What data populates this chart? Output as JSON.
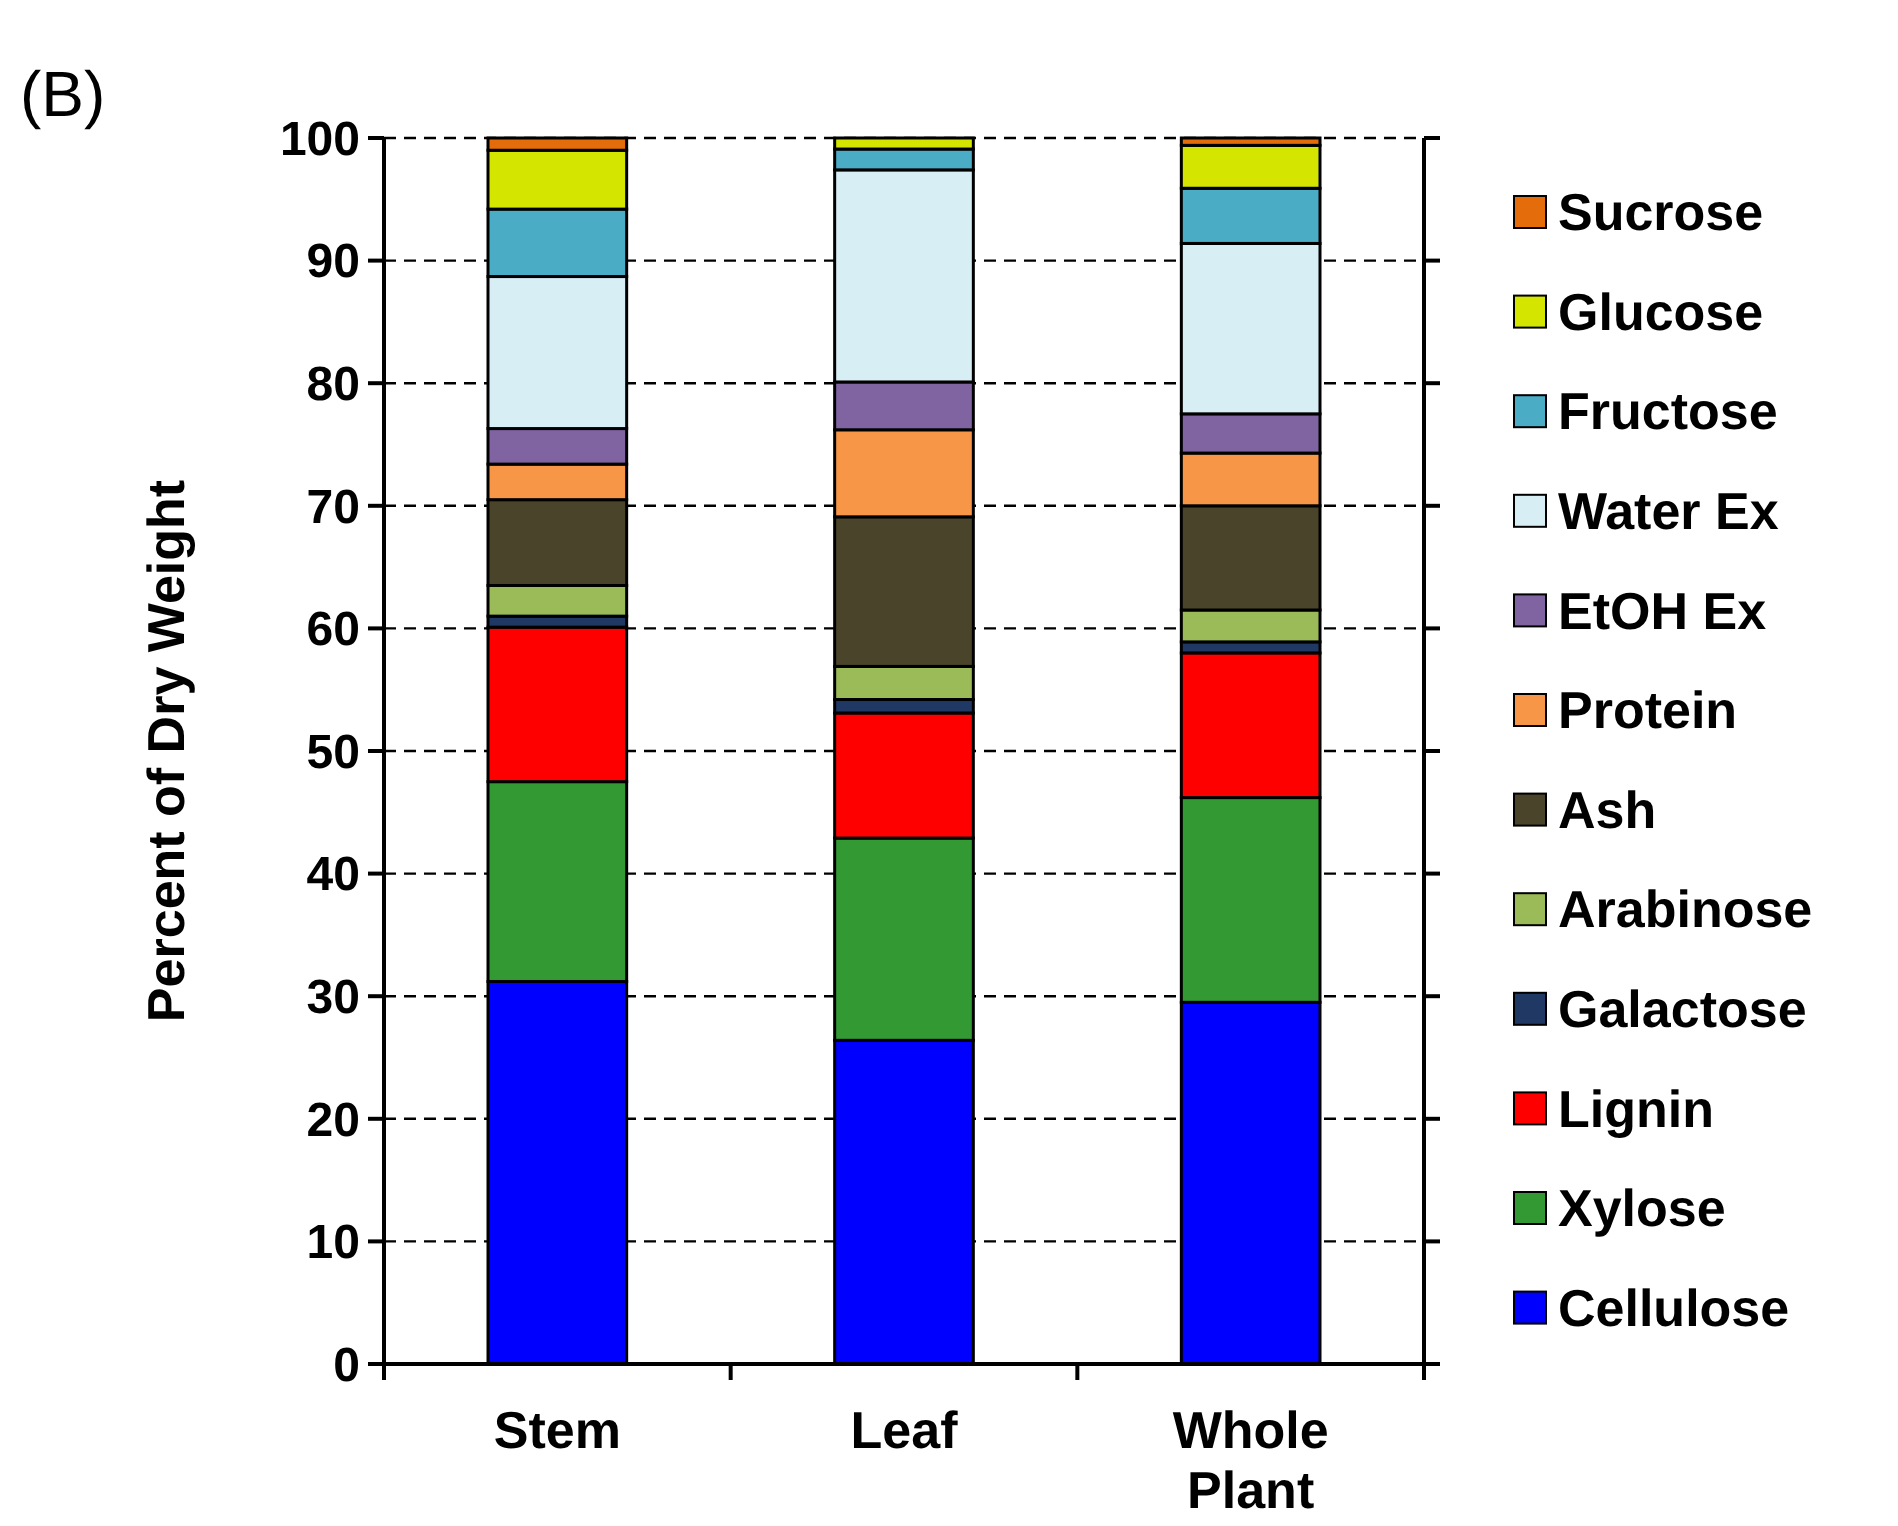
{
  "chart_data": {
    "type": "bar",
    "stacked": true,
    "ylabel": "Percent of Dry Weight",
    "annotations": [
      "(B)"
    ],
    "categories": [
      "Stem",
      "Leaf",
      "Whole Plant"
    ],
    "ylim": [
      0,
      100
    ],
    "yticks": [
      0,
      10,
      20,
      30,
      40,
      50,
      60,
      70,
      80,
      90,
      100
    ],
    "grid": "y",
    "legend": "right",
    "series": [
      {
        "name": "Cellulose",
        "color": "#0000ff",
        "values": [
          31.2,
          26.4,
          29.5
        ]
      },
      {
        "name": "Xylose",
        "color": "#339933",
        "values": [
          16.3,
          16.5,
          16.7
        ]
      },
      {
        "name": "Lignin",
        "color": "#ff0000",
        "values": [
          12.6,
          10.2,
          11.8
        ]
      },
      {
        "name": "Galactose",
        "color": "#1f3864",
        "values": [
          0.9,
          1.1,
          0.9
        ]
      },
      {
        "name": "Arabinose",
        "color": "#9bbb59",
        "values": [
          2.5,
          2.7,
          2.6
        ]
      },
      {
        "name": "Ash",
        "color": "#4a452a",
        "values": [
          7.0,
          12.2,
          8.5
        ]
      },
      {
        "name": "Protein",
        "color": "#f79646",
        "values": [
          2.9,
          7.1,
          4.3
        ]
      },
      {
        "name": "EtOH Ex",
        "color": "#8064a2",
        "values": [
          2.9,
          3.9,
          3.2
        ]
      },
      {
        "name": "Water Ex",
        "color": "#d6eef4",
        "values": [
          12.4,
          17.3,
          13.9
        ]
      },
      {
        "name": "Fructose",
        "color": "#4bacc6",
        "values": [
          5.5,
          1.7,
          4.5
        ]
      },
      {
        "name": "Glucose",
        "color": "#d4e600",
        "values": [
          4.8,
          0.9,
          3.5
        ]
      },
      {
        "name": "Sucrose",
        "color": "#e46c0a",
        "values": [
          1.0,
          0,
          0.6
        ]
      }
    ]
  }
}
